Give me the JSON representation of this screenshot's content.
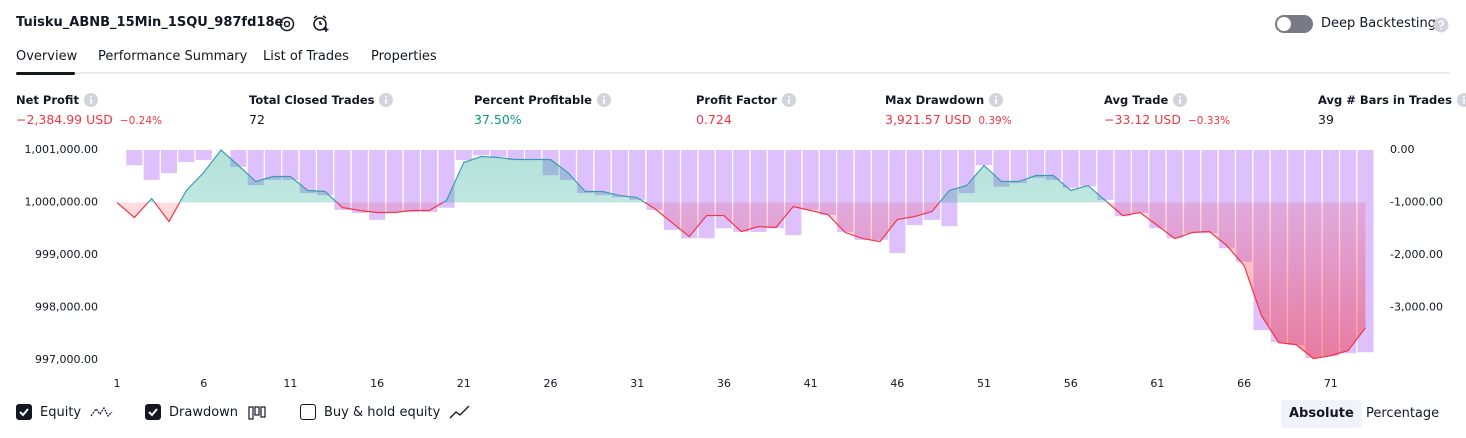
{
  "header": {
    "title": "Tuisku_ABNB_15Min_1SQU_987fd18e",
    "deep_backtesting": "Deep Backtesting"
  },
  "tabs": [
    "Overview",
    "Performance Summary",
    "List of Trades",
    "Properties"
  ],
  "metrics": [
    {
      "label": "Net Profit",
      "value": "−2,384.99 USD",
      "pct": "−0.24%",
      "color": "#f23645"
    },
    {
      "label": "Total Closed Trades",
      "value": "72",
      "color": "#131722"
    },
    {
      "label": "Percent Profitable",
      "value": "37.50%",
      "color": "#089981"
    },
    {
      "label": "Profit Factor",
      "value": "0.724",
      "color": "#f23645"
    },
    {
      "label": "Max Drawdown",
      "value": "3,921.57 USD",
      "pct": "0.39%",
      "color": "#f23645"
    },
    {
      "label": "Avg Trade",
      "value": "−33.12 USD",
      "pct": "−0.33%",
      "color": "#f23645"
    },
    {
      "label": "Avg # Bars in Trades",
      "value": "39",
      "color": "#131722"
    }
  ],
  "chart_data": {
    "type": "line",
    "x": [
      1,
      2,
      3,
      4,
      5,
      6,
      7,
      8,
      9,
      10,
      11,
      12,
      13,
      14,
      15,
      16,
      17,
      18,
      19,
      20,
      21,
      22,
      23,
      24,
      25,
      26,
      27,
      28,
      29,
      30,
      31,
      32,
      33,
      34,
      35,
      36,
      37,
      38,
      39,
      40,
      41,
      42,
      43,
      44,
      45,
      46,
      47,
      48,
      49,
      50,
      51,
      52,
      53,
      54,
      55,
      56,
      57,
      58,
      59,
      60,
      61,
      62,
      63,
      64,
      65,
      66,
      67,
      68,
      69,
      70,
      71,
      72,
      73
    ],
    "xlim": [
      1,
      73
    ],
    "xticks": [
      1,
      6,
      11,
      16,
      21,
      26,
      31,
      36,
      41,
      46,
      51,
      56,
      61,
      66,
      71
    ],
    "ylim": [
      996850,
      1001000
    ],
    "yticks": [
      {
        "value": 997000,
        "label": "997,000.00"
      },
      {
        "value": 998000,
        "label": "998,000.00"
      },
      {
        "value": 999000,
        "label": "999,000.00"
      },
      {
        "value": 1000000,
        "label": "1,000,000.00"
      },
      {
        "value": 1001000,
        "label": "1,001,000.00"
      }
    ],
    "y2lim": [
      -4150,
      0
    ],
    "y2ticks": [
      {
        "value": -3000,
        "label": "-3,000.00"
      },
      {
        "value": -2000,
        "label": "-2,000.00"
      },
      {
        "value": -1000,
        "label": "-1,000.00"
      },
      {
        "value": 0,
        "label": "0.00"
      }
    ],
    "series": [
      {
        "name": "Equity",
        "type": "line",
        "color": "#3f9bb5",
        "color_below": "#f23645",
        "checked": true,
        "values": [
          1000000,
          999714,
          1000076,
          999638,
          1000229,
          1000571,
          1001000,
          1000705,
          1000400,
          1000495,
          1000495,
          1000229,
          1000210,
          999905,
          999848,
          999810,
          999810,
          999848,
          999848,
          1000038,
          1000762,
          1000876,
          1000857,
          1000819,
          1000819,
          1000819,
          1000571,
          1000210,
          1000210,
          1000133,
          1000095,
          999886,
          999619,
          999352,
          999752,
          999752,
          999448,
          999543,
          999524,
          999924,
          999848,
          999771,
          999429,
          999314,
          999257,
          999676,
          999733,
          999829,
          1000229,
          1000324,
          1000705,
          1000400,
          1000400,
          1000514,
          1000514,
          1000229,
          1000324,
          1000038,
          999752,
          999810,
          999562,
          999314,
          999429,
          999448,
          999181,
          998800,
          997848,
          997333,
          997295,
          997029,
          997086,
          997181,
          997615
        ]
      },
      {
        "name": "Drawdown",
        "type": "bar",
        "axis": "y2",
        "color": "#d4b0fb",
        "checked": true,
        "values": [
          0,
          -290,
          -570,
          -440,
          -230,
          -190,
          0,
          -320,
          -670,
          -570,
          -570,
          -820,
          -860,
          -1140,
          -1200,
          -1330,
          -1180,
          -1180,
          -1180,
          -1100,
          -190,
          -100,
          -130,
          -190,
          -190,
          -480,
          -570,
          -820,
          -860,
          -900,
          -950,
          -1140,
          -1520,
          -1680,
          -1680,
          -1490,
          -1560,
          -1560,
          -1490,
          -1620,
          -1140,
          -1240,
          -1560,
          -1710,
          -1710,
          -1960,
          -1430,
          -1330,
          -1450,
          -820,
          -290,
          -700,
          -630,
          -530,
          -570,
          -720,
          -690,
          -950,
          -1260,
          -1200,
          -1490,
          -1680,
          -1580,
          -1580,
          -1870,
          -2130,
          -3430,
          -3660,
          -3710,
          -3960,
          -3920,
          -3870,
          -3850
        ]
      }
    ]
  },
  "buy_hold": {
    "label": "Buy & hold equity",
    "checked": false
  },
  "modes": [
    {
      "label": "Absolute",
      "selected": true
    },
    {
      "label": "Percentage",
      "selected": false
    }
  ]
}
